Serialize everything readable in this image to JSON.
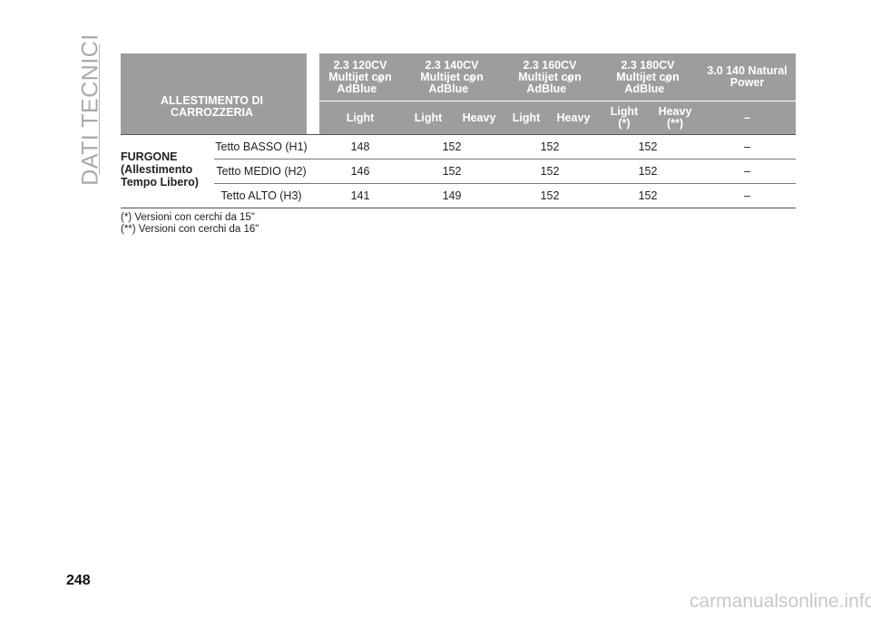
{
  "sidebar": {
    "title": "DATI TECNICI"
  },
  "table": {
    "row_header": "ALLESTIMENTO DI CARROZZERIA",
    "engines": [
      {
        "l1": "2.3 120CV",
        "l2": "Multijet con",
        "l3": "AdBlue"
      },
      {
        "l1": "2.3 140CV",
        "l2": "Multijet con",
        "l3": "AdBlue"
      },
      {
        "l1": "2.3 160CV",
        "l2": "Multijet con",
        "l3": "AdBlue"
      },
      {
        "l1": "2.3 180CV",
        "l2": "Multijet con",
        "l3": "AdBlue"
      },
      {
        "l1": "3.0 140 Natural",
        "l2": "Power"
      }
    ],
    "reg_mark": "®",
    "subheaders": {
      "c1": "Light",
      "c2": "Light",
      "c3": "Heavy",
      "c4": "Light",
      "c5": "Heavy",
      "c6_1": "Light",
      "c6_2": "(*)",
      "c7_1": "Heavy",
      "c7_2": "(**)",
      "c8": "–"
    },
    "category": {
      "l1": "FURGONE",
      "l2": "(Allestimento",
      "l3": "Tempo Libero)"
    },
    "rows": [
      {
        "label": "Tetto BASSO (H1)",
        "v1": "148",
        "v2": "152",
        "v3": "152",
        "v4": "152",
        "v5": "–"
      },
      {
        "label": "Tetto MEDIO (H2)",
        "v1": "146",
        "v2": "152",
        "v3": "152",
        "v4": "152",
        "v5": "–"
      },
      {
        "label": "Tetto ALTO (H3)",
        "v1": "141",
        "v2": "149",
        "v3": "152",
        "v4": "152",
        "v5": "–"
      }
    ]
  },
  "notes": {
    "n1": "(*) Versioni con cerchi da 15\"",
    "n2": "(**) Versioni con cerchi da 16\""
  },
  "page_number": "248",
  "watermark": "carmanualsonline.info"
}
